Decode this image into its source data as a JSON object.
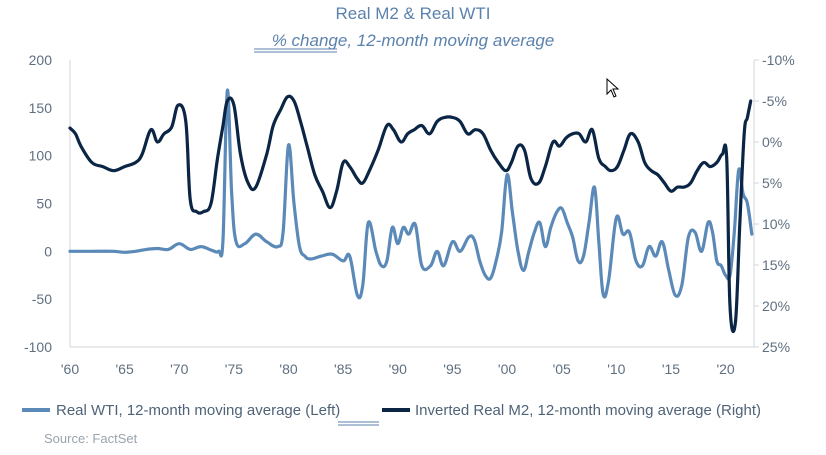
{
  "chart_data": {
    "type": "line",
    "title": "Real M2 & Real WTI",
    "subtitle": "% change, 12-month moving average",
    "x_ticks": [
      "'60",
      "'65",
      "'70",
      "'75",
      "'80",
      "'85",
      "'90",
      "'95",
      "'00",
      "'05",
      "'10",
      "'15",
      "'20"
    ],
    "x_range": [
      1960,
      2022.6
    ],
    "left_axis": {
      "range": [
        -100,
        200
      ],
      "ticks": [
        "200",
        "150",
        "100",
        "50",
        "0",
        "-50",
        "-100"
      ],
      "tick_values": [
        200,
        150,
        100,
        50,
        0,
        -50,
        -100
      ]
    },
    "right_axis": {
      "range": [
        -10,
        25
      ],
      "inverted": true,
      "ticks": [
        "-10%",
        "-5%",
        "0%",
        "5%",
        "10%",
        "15%",
        "20%",
        "25%"
      ],
      "tick_values": [
        -10,
        -5,
        0,
        5,
        10,
        15,
        20,
        25
      ]
    },
    "series": [
      {
        "name": "Real WTI, 12-month moving average (Left)",
        "axis": "left",
        "color": "#5b8ab8",
        "x": [
          1960,
          1962,
          1964,
          1965,
          1966,
          1967,
          1968,
          1969,
          1970,
          1971,
          1972,
          1973,
          1973.6,
          1974,
          1974.4,
          1974.8,
          1975.2,
          1976,
          1977,
          1978,
          1979,
          1979.5,
          1980,
          1980.5,
          1981,
          1981.5,
          1982,
          1983,
          1984,
          1985,
          1985.6,
          1986.3,
          1986.8,
          1987.3,
          1988,
          1988.5,
          1989,
          1989.5,
          1990,
          1990.5,
          1991,
          1991.6,
          1992.2,
          1993,
          1993.6,
          1994.2,
          1995,
          1995.7,
          1996.5,
          1997,
          1997.5,
          1998,
          1998.5,
          1999,
          1999.5,
          2000,
          2000.5,
          2001,
          2001.5,
          2002,
          2002.5,
          2003,
          2003.5,
          2004,
          2004.5,
          2005,
          2005.5,
          2006,
          2006.5,
          2007,
          2007.5,
          2008,
          2008.4,
          2008.8,
          2009.3,
          2010,
          2010.6,
          2011.2,
          2011.8,
          2012.4,
          2013,
          2013.6,
          2014.2,
          2014.8,
          2015.4,
          2016,
          2016.6,
          2017.2,
          2017.8,
          2018.4,
          2018.8,
          2019.2,
          2019.6,
          2020,
          2020.4,
          2020.8,
          2021.2,
          2021.6,
          2022,
          2022.4
        ],
        "values": [
          0,
          0,
          0,
          -1,
          0,
          2,
          3,
          2,
          8,
          2,
          5,
          1,
          0,
          12,
          168,
          60,
          10,
          8,
          18,
          10,
          5,
          20,
          111,
          50,
          5,
          -5,
          -8,
          -5,
          -3,
          -10,
          -5,
          -46,
          -35,
          30,
          0,
          -15,
          -10,
          25,
          8,
          25,
          18,
          28,
          -15,
          -15,
          0,
          -15,
          10,
          0,
          15,
          12,
          -10,
          -25,
          -28,
          -10,
          20,
          80,
          40,
          0,
          -20,
          0,
          20,
          30,
          5,
          25,
          40,
          45,
          30,
          15,
          -10,
          -5,
          30,
          67,
          10,
          -45,
          -30,
          35,
          18,
          20,
          -10,
          -15,
          5,
          -5,
          10,
          -20,
          -46,
          -35,
          15,
          20,
          0,
          30,
          20,
          -10,
          -15,
          -25,
          -25,
          20,
          85,
          60,
          50,
          18
        ]
      },
      {
        "name": "Inverted Real M2, 12-month moving average (Right)",
        "axis": "right",
        "color": "#0b2545",
        "x": [
          1960,
          1960.5,
          1961,
          1962,
          1963,
          1964,
          1965,
          1966,
          1966.6,
          1967.4,
          1968,
          1968.6,
          1969.3,
          1969.9,
          1970.6,
          1971,
          1971.6,
          1972.2,
          1972.9,
          1973.5,
          1974,
          1974.4,
          1975,
          1975.6,
          1976.3,
          1977,
          1978,
          1978.6,
          1979.3,
          1979.9,
          1980.5,
          1981.1,
          1981.7,
          1982.4,
          1983.1,
          1983.8,
          1984.4,
          1985,
          1985.6,
          1986.3,
          1986.8,
          1987.4,
          1988.2,
          1989,
          1989.6,
          1990.3,
          1990.9,
          1991.5,
          1992.2,
          1992.9,
          1993.6,
          1994.3,
          1995,
          1995.7,
          1996.4,
          1997.1,
          1997.8,
          1998.5,
          1999.2,
          1999.9,
          2000.4,
          2001,
          2001.6,
          2002.2,
          2002.9,
          2003.5,
          2004.2,
          2004.8,
          2005.4,
          2006,
          2006.6,
          2007.2,
          2007.8,
          2008.4,
          2009,
          2009.5,
          2010.1,
          2010.7,
          2011.3,
          2012,
          2012.6,
          2013.2,
          2013.8,
          2014.4,
          2015,
          2015.6,
          2016.2,
          2016.8,
          2017.4,
          2018,
          2018.6,
          2019.2,
          2019.7,
          2020.1,
          2020.4,
          2020.9,
          2021.3,
          2021.7,
          2022,
          2022.3
        ],
        "values": [
          -1.7,
          -1.0,
          0.5,
          2.5,
          3.0,
          3.5,
          3.0,
          2.5,
          1.5,
          -1.5,
          0,
          -1.0,
          -1.8,
          -4.5,
          -2.5,
          7.0,
          8.5,
          8.5,
          7.5,
          2.0,
          -2.0,
          -5.0,
          -4.5,
          1.5,
          5.0,
          5.5,
          1.5,
          -2.0,
          -4.0,
          -5.5,
          -5.0,
          -2.5,
          0.5,
          4.0,
          6.0,
          8.0,
          6.0,
          2.5,
          3.0,
          4.5,
          5.0,
          3.5,
          1.0,
          -2.0,
          -1.5,
          0,
          -1.0,
          -1.5,
          -2.0,
          -1.0,
          -2.5,
          -3.0,
          -3.0,
          -2.5,
          -1.0,
          -1.5,
          -1.0,
          1.0,
          2.5,
          3.5,
          2.5,
          0.5,
          1.0,
          4.5,
          5.0,
          3.0,
          0,
          0.5,
          -0.5,
          -1.0,
          -1.0,
          0,
          -1.5,
          2.0,
          3.0,
          3.5,
          3.0,
          1.0,
          -1.0,
          0,
          2.5,
          3.5,
          4.0,
          5.0,
          6.0,
          5.5,
          5.5,
          5.0,
          3.5,
          2.5,
          3.0,
          2.5,
          1.5,
          2.0,
          20.0,
          22.0,
          10.0,
          -1.0,
          -3.0,
          -5.0
        ]
      }
    ],
    "legend": {
      "placement": "bottom"
    },
    "grid": false
  },
  "source": "Source: FactSet"
}
